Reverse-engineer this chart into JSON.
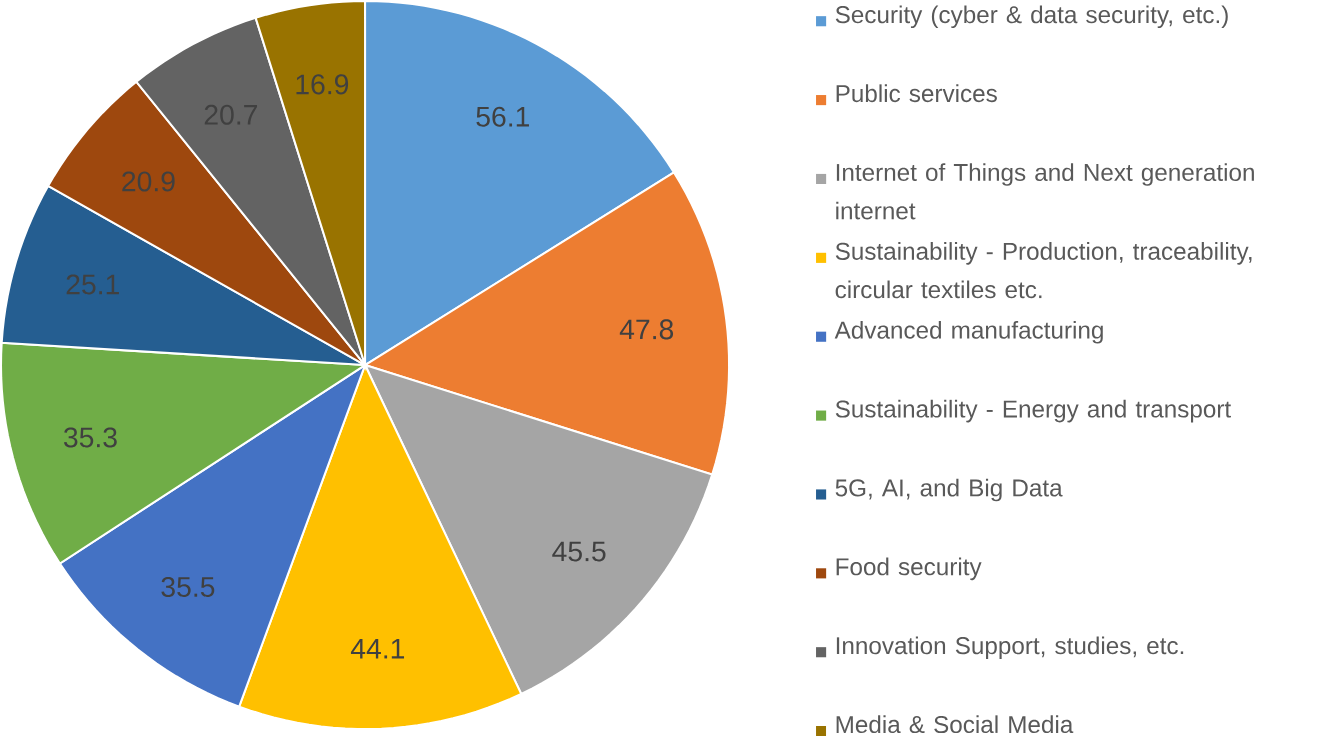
{
  "chart_data": {
    "type": "pie",
    "categories": [
      "Security (cyber & data security, etc.)",
      "Public services",
      "Internet of Things and Next generation internet",
      "Sustainability - Production, traceability, circular textiles etc.",
      "Advanced manufacturing",
      "Sustainability - Energy and transport",
      "5G, AI, and Big Data",
      "Food security",
      "Innovation Support, studies, etc.",
      "Media & Social Media"
    ],
    "values": [
      56.1,
      47.8,
      45.5,
      44.1,
      35.5,
      35.3,
      25.1,
      20.9,
      20.7,
      16.9
    ],
    "colors": [
      "#5b9bd5",
      "#ed7d31",
      "#a5a5a5",
      "#ffc000",
      "#4472c4",
      "#70ad47",
      "#255e91",
      "#9e480e",
      "#636363",
      "#997300"
    ],
    "data_labels": true,
    "legend": "right"
  }
}
